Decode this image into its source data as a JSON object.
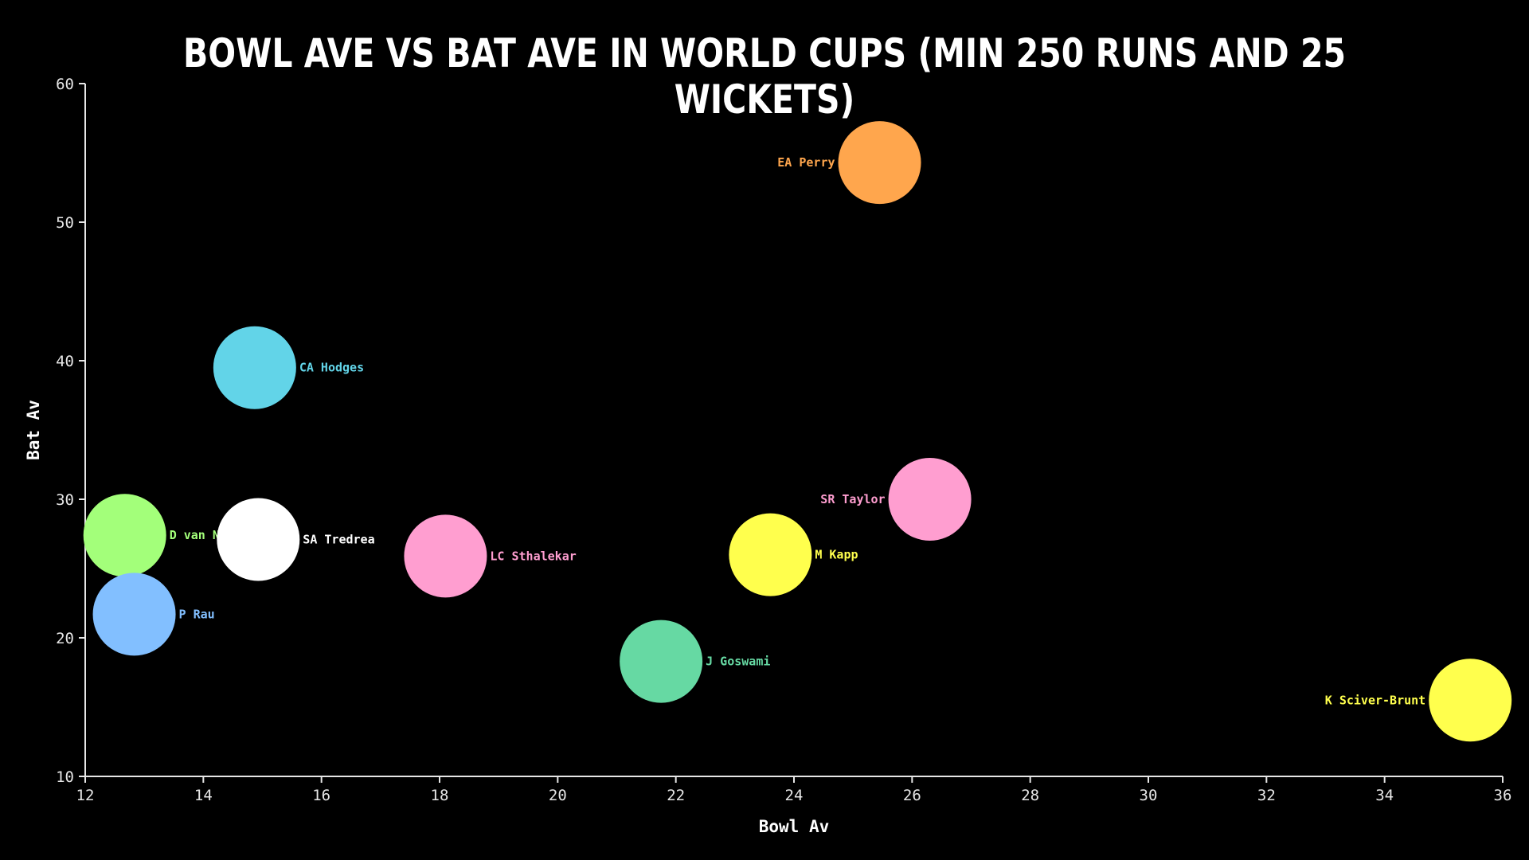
{
  "chart_data": {
    "type": "scatter",
    "title": "Bowl Ave vs Bat Ave in World Cups (min 250 runs and 25 wickets)",
    "xlabel": "Bowl Av",
    "ylabel": "Bat Av",
    "xlim": [
      12,
      36
    ],
    "ylim": [
      10,
      60
    ],
    "xticks": [
      "12",
      "14",
      "16",
      "18",
      "20",
      "22",
      "24",
      "26",
      "28",
      "30",
      "32",
      "34",
      "36"
    ],
    "yticks": [
      "10",
      "20",
      "30",
      "40",
      "50",
      "60"
    ],
    "grid": false,
    "points": [
      {
        "label": "EA Perry",
        "x": 25.45,
        "y": 54.3,
        "color": "#ffa64d",
        "label_side": "left"
      },
      {
        "label": "CA Hodges",
        "x": 14.87,
        "y": 39.5,
        "color": "#62d4e8",
        "label_side": "right"
      },
      {
        "label": "D van Niekerk",
        "x": 12.67,
        "y": 27.4,
        "color": "#a3ff7a",
        "label_side": "right"
      },
      {
        "label": "SA Tredrea",
        "x": 14.93,
        "y": 27.1,
        "color": "#ffffff",
        "label_side": "right"
      },
      {
        "label": "LC Sthalekar",
        "x": 18.1,
        "y": 25.9,
        "color": "#ff9ed0",
        "label_side": "right"
      },
      {
        "label": "P Rau",
        "x": 12.83,
        "y": 21.7,
        "color": "#82bfff",
        "label_side": "right"
      },
      {
        "label": "SR Taylor",
        "x": 26.3,
        "y": 30.0,
        "color": "#ff9ed0",
        "label_side": "left"
      },
      {
        "label": "M Kapp",
        "x": 23.6,
        "y": 26.0,
        "color": "#ffff4d",
        "label_side": "right"
      },
      {
        "label": "J Goswami",
        "x": 21.75,
        "y": 18.3,
        "color": "#66d9a3",
        "label_side": "right"
      },
      {
        "label": "K Sciver-Brunt",
        "x": 35.45,
        "y": 15.5,
        "color": "#ffff4d",
        "label_side": "left"
      }
    ]
  },
  "colors": {
    "background": "#000000",
    "axis": "#e6e6e6",
    "title": "#ffffff"
  }
}
